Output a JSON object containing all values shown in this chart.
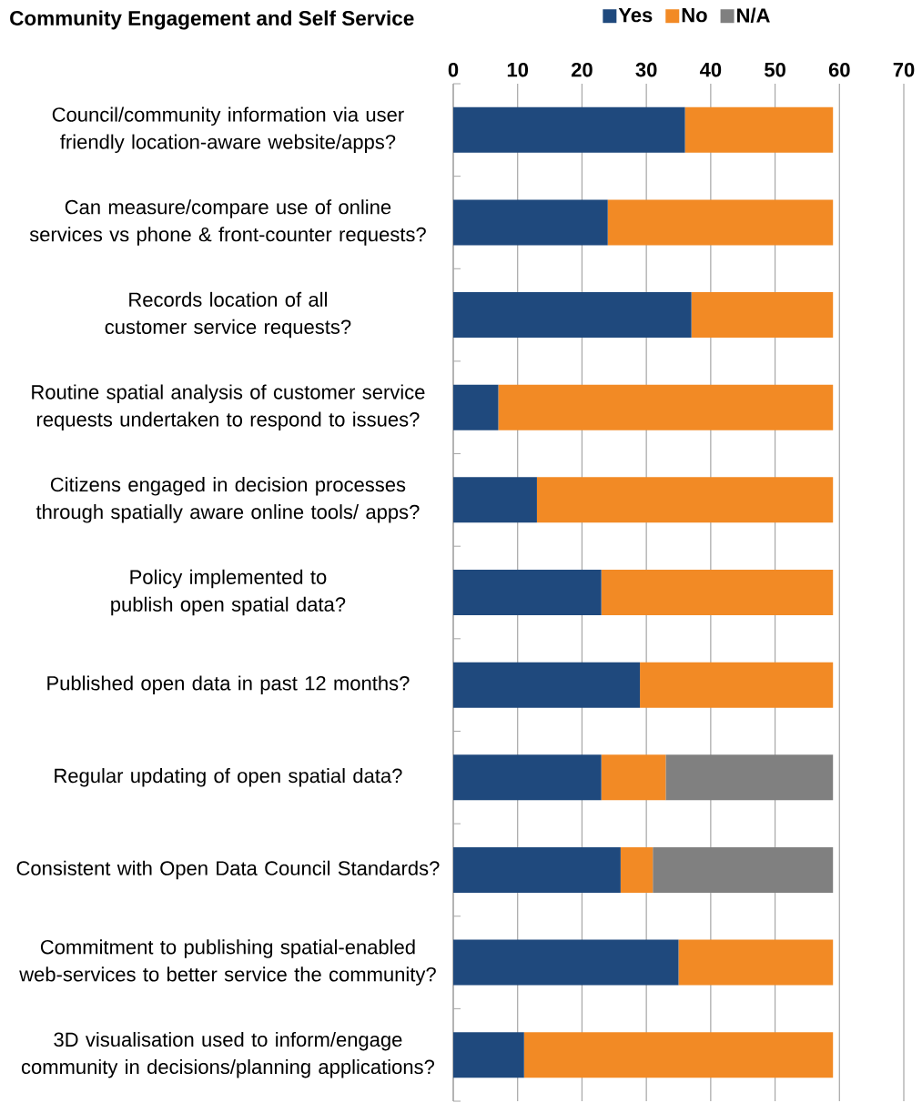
{
  "chart_data": {
    "type": "bar",
    "orientation": "horizontal",
    "stacked": true,
    "title": "Community Engagement and Self Service",
    "categories": [
      "Council/community information via user friendly location-aware website/apps?",
      "Can measure/compare use of online services vs phone & front-counter requests?",
      "Records location of all customer service requests?",
      "Routine spatial analysis of customer service requests undertaken to respond to issues?",
      "Citizens engaged in decision processes through spatially aware online tools/ apps?",
      "Policy implemented to publish open spatial data?",
      "Published open data in past 12 months?",
      "Regular updating of open spatial data?",
      "Consistent with Open Data Council Standards?",
      "Commitment to publishing spatial-enabled web-services to better service the community?",
      "3D visualisation used to inform/engage community in decisions/planning applications?"
    ],
    "series": [
      {
        "name": "Yes",
        "color": "#1f497d",
        "values": [
          36,
          24,
          37,
          7,
          13,
          23,
          29,
          23,
          26,
          35,
          11
        ]
      },
      {
        "name": "No",
        "color": "#f28a25",
        "values": [
          23,
          35,
          22,
          52,
          46,
          36,
          30,
          10,
          5,
          24,
          48
        ]
      },
      {
        "name": "N/A",
        "color": "#808080",
        "values": [
          0,
          0,
          0,
          0,
          0,
          0,
          0,
          26,
          28,
          0,
          0
        ]
      }
    ],
    "xlim": [
      0,
      70
    ],
    "xticks": [
      0,
      10,
      20,
      30,
      40,
      50,
      60,
      70
    ],
    "grid": "x",
    "legend": "top"
  }
}
